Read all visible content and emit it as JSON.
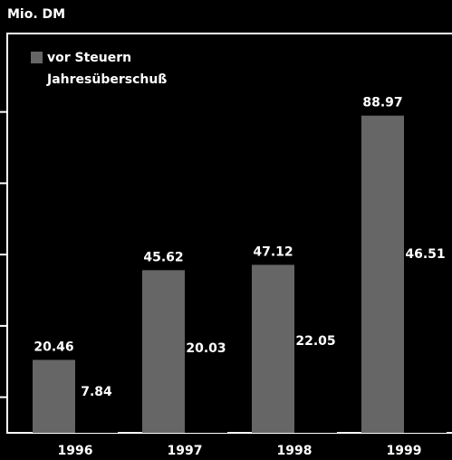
{
  "chart_data": {
    "type": "bar",
    "y_axis_label": "Mio. DM",
    "categories": [
      "1996",
      "1997",
      "1998",
      "1999"
    ],
    "series": [
      {
        "name": "vor Steuern",
        "color": "#666666",
        "values": [
          20.46,
          45.62,
          47.12,
          88.97
        ]
      },
      {
        "name": "Jahresüberschuß",
        "color": "#000000",
        "values": [
          7.84,
          20.03,
          22.05,
          46.51
        ]
      }
    ],
    "ylim": [
      0,
      112
    ],
    "yticks": [
      10,
      30,
      50,
      70,
      90
    ],
    "legend": "upper left"
  }
}
